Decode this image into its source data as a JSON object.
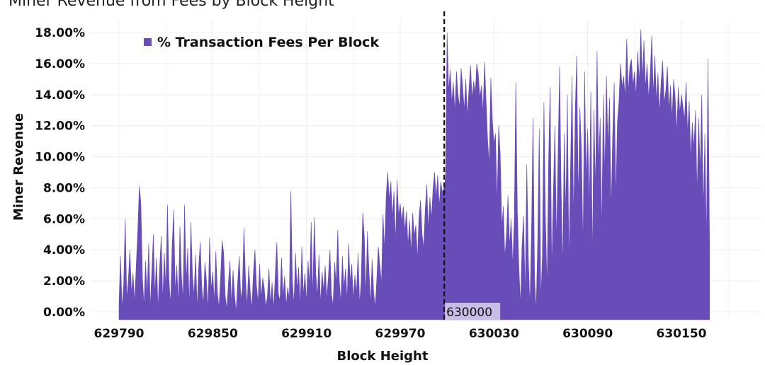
{
  "chart_data": {
    "type": "area",
    "title": "Miner Revenue from Fees by Block Height",
    "xlabel": "Block Height",
    "ylabel": "Miner Revenue",
    "legend": {
      "label": "% Transaction Fees Per Block",
      "position": "top-left"
    },
    "colors": {
      "series": "#684cb8",
      "grid": "#ececec",
      "marker_line": "#111111",
      "annotation_bg": "#c9bde8"
    },
    "grid": true,
    "ylim": [
      -0.5,
      18.5
    ],
    "xlim": [
      629770,
      630200
    ],
    "y_ticks": [
      0,
      2,
      4,
      6,
      8,
      10,
      12,
      14,
      16,
      18
    ],
    "y_tick_labels": [
      "0.00%",
      "2.00%",
      "4.00%",
      "6.00%",
      "8.00%",
      "10.00%",
      "12.00%",
      "14.00%",
      "16.00%",
      "18.00%"
    ],
    "x_ticks": [
      629790,
      629850,
      629910,
      629970,
      630030,
      630090,
      630150
    ],
    "x_tick_labels": [
      "629790",
      "629850",
      "629910",
      "629970",
      "630030",
      "630090",
      "630150"
    ],
    "annotation": {
      "x": 630000,
      "label": "630000",
      "style": "dashed vertical line"
    },
    "x_start": 629790,
    "series": [
      {
        "name": "% Transaction Fees Per Block",
        "values": [
          0.5,
          3.6,
          0.2,
          1.8,
          6.0,
          0.8,
          2.1,
          4.0,
          1.2,
          2.5,
          0.6,
          3.0,
          5.2,
          8.1,
          7.0,
          2.2,
          0.4,
          3.3,
          1.0,
          4.4,
          0.3,
          2.6,
          5.0,
          1.1,
          3.5,
          0.2,
          2.8,
          4.9,
          0.7,
          3.8,
          1.5,
          6.9,
          2.0,
          0.5,
          4.2,
          6.6,
          1.3,
          3.0,
          0.4,
          5.5,
          2.3,
          0.8,
          6.9,
          1.9,
          4.1,
          0.3,
          5.8,
          2.4,
          1.0,
          3.7,
          0.2,
          2.9,
          4.5,
          1.6,
          0.5,
          3.2,
          2.0,
          0.1,
          4.8,
          1.4,
          2.6,
          0.6,
          3.9,
          1.2,
          0.3,
          2.2,
          4.6,
          3.8,
          1.0,
          0.2,
          1.8,
          3.3,
          0.5,
          2.7,
          1.1,
          0.0,
          2.0,
          3.6,
          0.8,
          1.5,
          5.4,
          2.1,
          0.4,
          3.0,
          1.3,
          0.2,
          2.5,
          4.0,
          1.7,
          0.6,
          3.1,
          0.9,
          2.2,
          1.5,
          0.3,
          1.0,
          2.8,
          0.5,
          1.9,
          0.2,
          2.4,
          4.5,
          1.2,
          0.7,
          3.5,
          1.0,
          2.3,
          0.4,
          1.6,
          0.8,
          7.8,
          2.0,
          0.5,
          3.8,
          1.4,
          2.9,
          0.3,
          4.2,
          1.1,
          2.5,
          0.6,
          3.3,
          1.7,
          5.8,
          0.9,
          6.1,
          2.4,
          1.0,
          3.7,
          0.5,
          2.6,
          1.4,
          3.0,
          0.8,
          2.2,
          4.0,
          1.1,
          0.4,
          3.2,
          1.8,
          5.3,
          2.0,
          0.6,
          3.6,
          1.5,
          2.8,
          0.7,
          4.4,
          1.9,
          3.1,
          0.8,
          2.4,
          1.2,
          3.8,
          0.5,
          2.0,
          6.4,
          4.9,
          1.0,
          5.2,
          2.7,
          0.5,
          3.4,
          1.3,
          0.3,
          2.1,
          4.2,
          3.0,
          1.8,
          6.3,
          4.0,
          7.5,
          9.0,
          7.2,
          8.4,
          6.1,
          7.8,
          4.5,
          8.5,
          6.2,
          7.0,
          5.8,
          6.8,
          5.2,
          6.5,
          4.3,
          5.9,
          3.8,
          6.4,
          4.9,
          5.6,
          3.4,
          6.1,
          7.2,
          5.0,
          4.1,
          6.6,
          8.2,
          5.3,
          7.4,
          6.0,
          7.9,
          9.0,
          7.3,
          8.8,
          6.8,
          8.4,
          7.7,
          8.0,
          8.6,
          18.0,
          14.2,
          15.6,
          13.5,
          14.8,
          12.9,
          15.5,
          14.0,
          13.2,
          15.7,
          14.5,
          13.0,
          15.0,
          12.6,
          14.3,
          15.9,
          13.7,
          14.9,
          14.1,
          16.0,
          15.3,
          13.8,
          14.6,
          12.8,
          16.1,
          13.5,
          11.0,
          9.5,
          15.1,
          12.4,
          10.8,
          11.5,
          7.0,
          12.0,
          10.2,
          5.5,
          6.8,
          3.5,
          5.0,
          7.5,
          4.2,
          6.0,
          3.0,
          5.8,
          14.8,
          6.5,
          2.8,
          0.5,
          4.3,
          6.2,
          1.0,
          9.5,
          3.5,
          0.3,
          5.0,
          12.5,
          2.2,
          0.1,
          4.5,
          11.8,
          0.8,
          3.6,
          13.5,
          6.0,
          1.5,
          9.8,
          14.5,
          2.5,
          7.5,
          12.0,
          4.4,
          10.0,
          15.8,
          8.0,
          2.8,
          11.5,
          6.3,
          14.0,
          3.0,
          9.2,
          15.2,
          5.8,
          12.8,
          16.5,
          7.0,
          13.2,
          10.5,
          4.0,
          15.5,
          8.5,
          11.8,
          6.6,
          14.2,
          3.2,
          13.0,
          7.8,
          16.8,
          9.5,
          12.5,
          5.0,
          14.0,
          8.8,
          15.2,
          10.6,
          13.8,
          6.5,
          11.5,
          14.8,
          7.2,
          12.2,
          13.5,
          16.0,
          14.5,
          15.2,
          13.8,
          17.6,
          14.2,
          15.8,
          16.3,
          14.6,
          15.5,
          13.9,
          16.8,
          14.8,
          18.2,
          15.0,
          17.5,
          14.4,
          16.0,
          13.8,
          15.2,
          17.8,
          14.0,
          16.5,
          13.6,
          15.4,
          12.8,
          14.8,
          16.2,
          13.5,
          14.2,
          15.8,
          13.0,
          14.6,
          12.5,
          15.0,
          13.8,
          11.6,
          14.5,
          12.8,
          14.0,
          13.2,
          12.4,
          14.8,
          11.5,
          13.6,
          9.8,
          12.2,
          10.5,
          13.0,
          7.5,
          12.5,
          9.0,
          14.0,
          6.5,
          11.5,
          4.5,
          16.3,
          4.5
        ]
      }
    ]
  }
}
